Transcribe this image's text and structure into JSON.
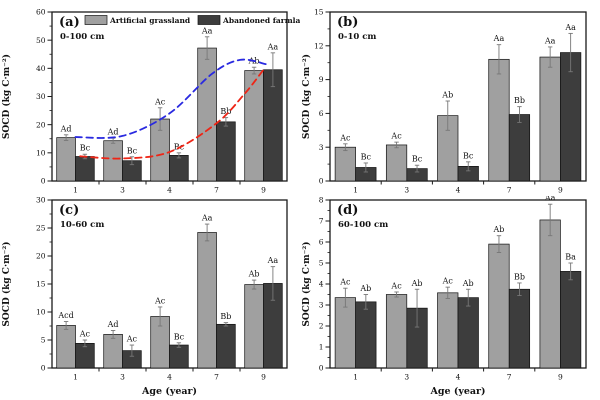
{
  "figure": {
    "xlabel": "Age (year)",
    "ylabel": "SOCD (kg C·m⁻²)",
    "legend": [
      {
        "label": "Artificial grassland",
        "color": "#a0a0a0"
      },
      {
        "label": "Abandoned farmland",
        "color": "#3d3d3d"
      }
    ],
    "frame_color": "#1a1a1a",
    "error_bar_color": "#777777",
    "trend_blue": "#2a2ae0",
    "trend_red": "#ee2516"
  },
  "chart_data": [
    {
      "type": "bar",
      "panel_label": "(a)",
      "depth_label": "0-100 cm",
      "categories": [
        "1",
        "3",
        "4",
        "7",
        "9"
      ],
      "ylim": [
        0,
        60
      ],
      "yticks": [
        0,
        10,
        20,
        30,
        40,
        50,
        60
      ],
      "ylabel": "SOCD (kg C·m⁻²)",
      "xlabel": "",
      "legend_in_panel": true,
      "series": [
        {
          "name": "Artificial grassland",
          "values": [
            15.4,
            14.3,
            22.0,
            47.2,
            39.2
          ],
          "errors": [
            1.0,
            0.9,
            4.0,
            4.0,
            1.2
          ],
          "letters": [
            "Ad",
            "Ad",
            "Ac",
            "Aa",
            "Ab"
          ]
        },
        {
          "name": "Abandoned farmland",
          "values": [
            8.7,
            7.2,
            9.1,
            21.0,
            39.5
          ],
          "errors": [
            0.8,
            1.4,
            0.9,
            1.5,
            6.0
          ],
          "letters": [
            "Bc",
            "Bc",
            "Bc",
            "Bb",
            "Aa"
          ]
        }
      ],
      "trend_curves": [
        {
          "name": "artificial-grassland-trend",
          "color": "#2a2ae0",
          "points": [
            [
              0,
              15.6
            ],
            [
              1,
              16.0
            ],
            [
              2,
              24.0
            ],
            [
              2.9,
              38.0
            ],
            [
              3.5,
              43.0
            ],
            [
              4.05,
              41.5
            ]
          ]
        },
        {
          "name": "abandoned-farmland-trend",
          "color": "#ee2516",
          "points": [
            [
              0.1,
              8.8
            ],
            [
              1,
              8.0
            ],
            [
              2,
              10.3
            ],
            [
              3,
              20.5
            ],
            [
              3.6,
              31.0
            ],
            [
              4,
              39.5
            ]
          ]
        }
      ]
    },
    {
      "type": "bar",
      "panel_label": "(b)",
      "depth_label": "0-10 cm",
      "categories": [
        "1",
        "3",
        "4",
        "7",
        "9"
      ],
      "ylim": [
        0,
        15
      ],
      "yticks": [
        0,
        3,
        6,
        9,
        12,
        15
      ],
      "ylabel": "SOCD (kg C·m⁻²)",
      "xlabel": "",
      "legend_in_panel": false,
      "series": [
        {
          "name": "Artificial grassland",
          "values": [
            3.0,
            3.2,
            5.8,
            10.8,
            11.0
          ],
          "errors": [
            0.3,
            0.25,
            1.3,
            1.3,
            0.9
          ],
          "letters": [
            "Ac",
            "Ac",
            "Ab",
            "Aa",
            "Aa"
          ]
        },
        {
          "name": "Abandoned farmland",
          "values": [
            1.2,
            1.1,
            1.3,
            5.9,
            11.4
          ],
          "errors": [
            0.4,
            0.3,
            0.4,
            0.7,
            1.7
          ],
          "letters": [
            "Bc",
            "Bc",
            "Bc",
            "Bb",
            "Aa"
          ]
        }
      ]
    },
    {
      "type": "bar",
      "panel_label": "(c)",
      "depth_label": "10-60 cm",
      "categories": [
        "1",
        "3",
        "4",
        "7",
        "9"
      ],
      "ylim": [
        0,
        30
      ],
      "yticks": [
        0,
        5,
        10,
        15,
        20,
        25,
        30
      ],
      "ylabel": "SOCD (kg C·m⁻²)",
      "xlabel": "Age (year)",
      "legend_in_panel": false,
      "series": [
        {
          "name": "Artificial grassland",
          "values": [
            7.6,
            6.0,
            9.2,
            24.2,
            14.9
          ],
          "errors": [
            0.7,
            0.7,
            1.7,
            1.5,
            0.8
          ],
          "letters": [
            "Acd",
            "Ad",
            "Ac",
            "Aa",
            "Ab"
          ]
        },
        {
          "name": "Abandoned farmland",
          "values": [
            4.4,
            3.1,
            4.1,
            7.8,
            15.1
          ],
          "errors": [
            0.6,
            1.0,
            0.4,
            0.3,
            3.0
          ],
          "letters": [
            "Ac",
            "Ac",
            "Bc",
            "Bb",
            "Aa"
          ]
        }
      ]
    },
    {
      "type": "bar",
      "panel_label": "(d)",
      "depth_label": "60-100 cm",
      "categories": [
        "1",
        "3",
        "4",
        "7",
        "9"
      ],
      "ylim": [
        0,
        8
      ],
      "yticks": [
        0,
        1,
        2,
        3,
        4,
        5,
        6,
        7,
        8
      ],
      "ylabel": "SOCD (kg C·m⁻²)",
      "xlabel": "Age (year)",
      "legend_in_panel": false,
      "series": [
        {
          "name": "Artificial grassland",
          "values": [
            3.35,
            3.5,
            3.58,
            5.9,
            7.05
          ],
          "errors": [
            0.45,
            0.12,
            0.27,
            0.4,
            0.75
          ],
          "letters": [
            "Ac",
            "Ac",
            "Ac",
            "Ab",
            "Aa"
          ]
        },
        {
          "name": "Abandoned farmland",
          "values": [
            3.15,
            2.85,
            3.35,
            3.75,
            4.6
          ],
          "errors": [
            0.35,
            0.9,
            0.4,
            0.3,
            0.4
          ],
          "letters": [
            "Ab",
            "Ab",
            "Ab",
            "Bb",
            "Ba"
          ]
        }
      ]
    }
  ]
}
